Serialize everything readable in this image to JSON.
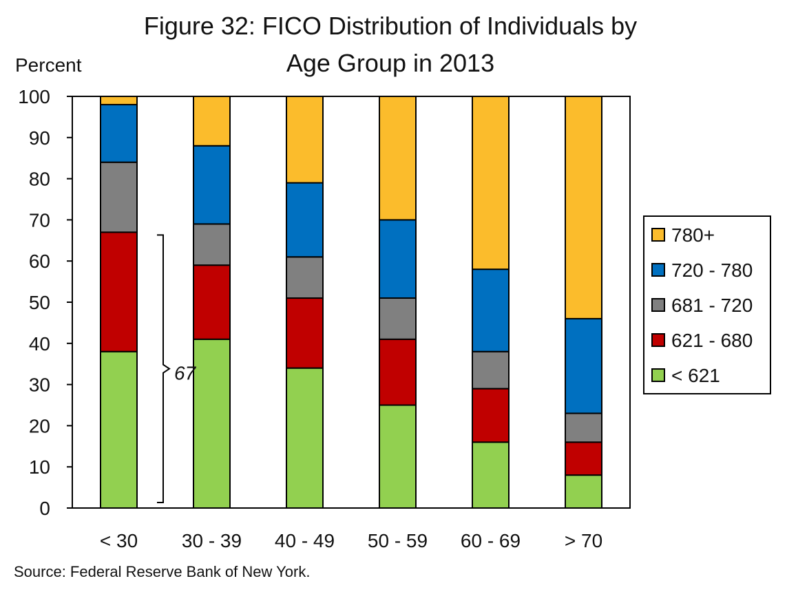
{
  "chart_data": {
    "type": "bar",
    "stacked": true,
    "title_line1": "Figure 32: FICO Distribution of Individuals by",
    "title_line2": "Age Group in 2013",
    "ylabel": "Percent",
    "xlabel": "",
    "ylim": [
      0,
      100
    ],
    "yticks": [
      0,
      10,
      20,
      30,
      40,
      50,
      60,
      70,
      80,
      90,
      100
    ],
    "grid": false,
    "legend_position": "right",
    "categories": [
      "< 30",
      "30 - 39",
      "40 - 49",
      "50 - 59",
      "60 - 69",
      "> 70"
    ],
    "series": [
      {
        "name": "< 621",
        "color": "#92d050",
        "values": [
          38,
          41,
          34,
          25,
          16,
          8
        ]
      },
      {
        "name": "621 - 680",
        "color": "#c00000",
        "values": [
          29,
          18,
          17,
          16,
          13,
          8
        ]
      },
      {
        "name": "681 - 720",
        "color": "#808080",
        "values": [
          17,
          10,
          10,
          10,
          9,
          7
        ]
      },
      {
        "name": "720 - 780",
        "color": "#0070c0",
        "values": [
          14,
          19,
          18,
          19,
          20,
          23
        ]
      },
      {
        "name": "780+",
        "color": "#fbbc2c",
        "values": [
          2,
          12,
          21,
          30,
          42,
          54
        ]
      }
    ],
    "annotation": {
      "text": "67",
      "category": "< 30",
      "from": 0,
      "to": 67
    },
    "source": "Source: Federal Reserve Bank of New York."
  }
}
